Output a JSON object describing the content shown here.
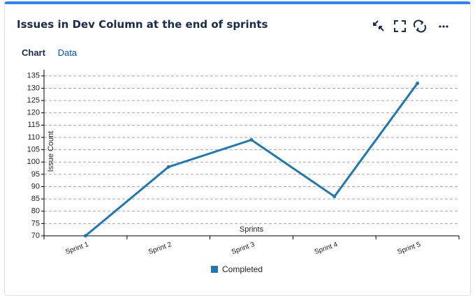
{
  "tabs": [
    "Chart",
    "Data"
  ],
  "chart_data": {
    "type": "line",
    "title": "Issues in Dev Column at the end of sprints",
    "xlabel": "Sprints",
    "ylabel": "Issue Count",
    "categories": [
      "Sprint 1",
      "Sprint 2",
      "Sprint 3",
      "Sprint 4",
      "Sprint 5"
    ],
    "series": [
      {
        "name": "Completed",
        "color": "#1f77b4",
        "values": [
          70,
          98,
          109,
          86,
          132
        ]
      }
    ],
    "ylim": [
      70,
      137.5
    ],
    "yticks": [
      70,
      75,
      80,
      85,
      90,
      95,
      100,
      105,
      110,
      115,
      120,
      125,
      130,
      135
    ],
    "grid": true
  }
}
